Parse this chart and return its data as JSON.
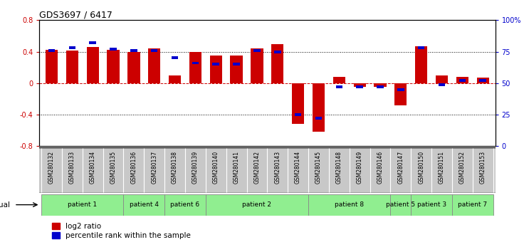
{
  "title": "GDS3697 / 6417",
  "samples": [
    "GSM280132",
    "GSM280133",
    "GSM280134",
    "GSM280135",
    "GSM280136",
    "GSM280137",
    "GSM280138",
    "GSM280139",
    "GSM280140",
    "GSM280141",
    "GSM280142",
    "GSM280143",
    "GSM280144",
    "GSM280145",
    "GSM280148",
    "GSM280149",
    "GSM280146",
    "GSM280147",
    "GSM280150",
    "GSM280151",
    "GSM280152",
    "GSM280153"
  ],
  "log2_ratio": [
    0.42,
    0.41,
    0.46,
    0.42,
    0.4,
    0.44,
    0.1,
    0.4,
    0.35,
    0.35,
    0.44,
    0.5,
    -0.52,
    -0.62,
    0.08,
    -0.05,
    -0.05,
    -0.28,
    0.47,
    0.1,
    0.08,
    0.07
  ],
  "percentile_rank": [
    76,
    78,
    82,
    77,
    76,
    76,
    70,
    66,
    65,
    65,
    76,
    75,
    25,
    22,
    47,
    47,
    47,
    45,
    78,
    49,
    52,
    52
  ],
  "patients": [
    {
      "label": "patient 1",
      "start": 0,
      "end": 4
    },
    {
      "label": "patient 4",
      "start": 4,
      "end": 6
    },
    {
      "label": "patient 6",
      "start": 6,
      "end": 8
    },
    {
      "label": "patient 2",
      "start": 8,
      "end": 13
    },
    {
      "label": "patient 8",
      "start": 13,
      "end": 17
    },
    {
      "label": "patient 5",
      "start": 17,
      "end": 18
    },
    {
      "label": "patient 3",
      "start": 18,
      "end": 20
    },
    {
      "label": "patient 7",
      "start": 20,
      "end": 22
    }
  ],
  "ylim_left": [
    -0.8,
    0.8
  ],
  "ylim_right": [
    0,
    100
  ],
  "red_color": "#CC0000",
  "blue_color": "#0000CC",
  "sample_bg": "#C8C8C8",
  "patient_bg_color": "#90EE90"
}
